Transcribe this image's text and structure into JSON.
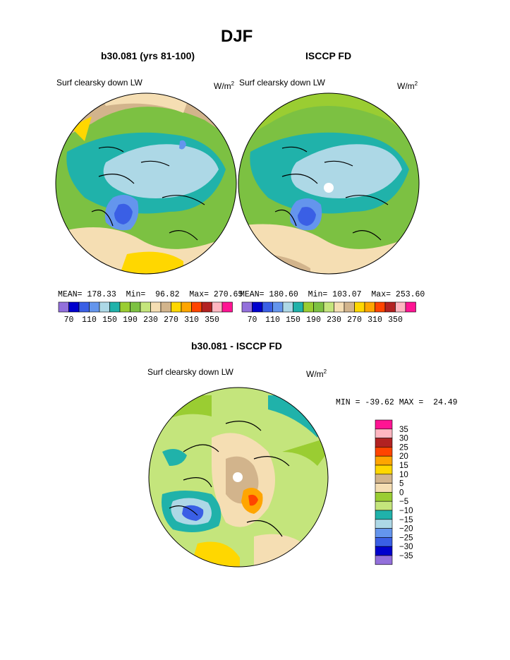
{
  "figure": {
    "title": "DJF",
    "colors": {
      "land_outline": "#000000",
      "missing": "#ffffff"
    }
  },
  "chart_data": [
    {
      "type": "heatmap",
      "projection": "north-polar-stereographic",
      "subtitle": "b30.081 (yrs 81-100)",
      "left_label": "Surf clearsky down LW",
      "units_base": "W/m",
      "units_exp": "2",
      "stats": {
        "mean_label": "MEAN=",
        "mean": "178.33",
        "min_label": "Min=",
        "min": "96.82",
        "max_label": "Max=",
        "max": "270.65"
      },
      "colorbar": {
        "orientation": "horizontal",
        "levels": [
          70,
          90,
          110,
          130,
          150,
          170,
          190,
          210,
          230,
          250,
          270,
          290,
          310,
          330,
          350
        ],
        "tick_labels": [
          "70",
          "110",
          "150",
          "190",
          "230",
          "270",
          "310",
          "350"
        ],
        "colors": [
          "#9370db",
          "#0000cd",
          "#3a5fe5",
          "#6495ed",
          "#add8e6",
          "#20b2aa",
          "#9acd32",
          "#7cc142",
          "#c4e57c",
          "#f5deb3",
          "#d2b48c",
          "#ffd700",
          "#ffa500",
          "#ff4500",
          "#b22222",
          "#ffb6c1",
          "#ff1493"
        ]
      }
    },
    {
      "type": "heatmap",
      "projection": "north-polar-stereographic",
      "subtitle": "ISCCP FD",
      "left_label": "Surf clearsky down LW",
      "units_base": "W/m",
      "units_exp": "2",
      "stats": {
        "mean_label": "MEAN=",
        "mean": "180.60",
        "min_label": "Min=",
        "min": "103.07",
        "max_label": "Max=",
        "max": "253.60"
      },
      "colorbar": {
        "orientation": "horizontal",
        "levels": [
          70,
          90,
          110,
          130,
          150,
          170,
          190,
          210,
          230,
          250,
          270,
          290,
          310,
          330,
          350
        ],
        "tick_labels": [
          "70",
          "110",
          "150",
          "190",
          "230",
          "270",
          "310",
          "350"
        ],
        "colors": [
          "#9370db",
          "#0000cd",
          "#3a5fe5",
          "#6495ed",
          "#add8e6",
          "#20b2aa",
          "#9acd32",
          "#7cc142",
          "#c4e57c",
          "#f5deb3",
          "#d2b48c",
          "#ffd700",
          "#ffa500",
          "#ff4500",
          "#b22222",
          "#ffb6c1",
          "#ff1493"
        ]
      }
    },
    {
      "type": "heatmap",
      "projection": "north-polar-stereographic",
      "subtitle": "b30.081 - ISCCP FD",
      "left_label": "Surf clearsky down LW",
      "units_base": "W/m",
      "units_exp": "2",
      "stats": {
        "min_label": "MIN =",
        "min": "-39.62",
        "max_label": "MAX =",
        "max": "24.49"
      },
      "colorbar": {
        "orientation": "vertical",
        "tick_labels": [
          "35",
          "30",
          "25",
          "20",
          "15",
          "10",
          "5",
          "0",
          "−5",
          "−10",
          "−15",
          "−20",
          "−25",
          "−30",
          "−35"
        ],
        "colors": [
          "#ff1493",
          "#ffb6c1",
          "#b22222",
          "#ff4500",
          "#ffa500",
          "#ffd700",
          "#d2b48c",
          "#f5deb3",
          "#9acd32",
          "#c4e57c",
          "#20b2aa",
          "#add8e6",
          "#6495ed",
          "#3a5fe5",
          "#0000cd",
          "#9370db"
        ]
      }
    }
  ]
}
